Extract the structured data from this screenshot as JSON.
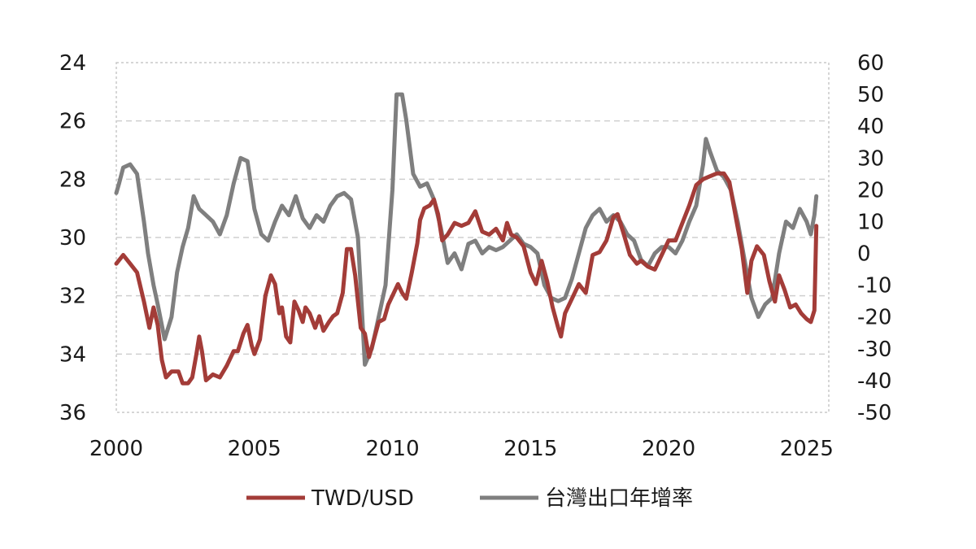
{
  "chart_data": {
    "type": "line",
    "title": "",
    "xlabel": "",
    "ylabel_left": "",
    "ylabel_right": "",
    "x_ticks": [
      "2000",
      "2005",
      "2010",
      "2015",
      "2020",
      "2025"
    ],
    "y_left_ticks": [
      "24",
      "26",
      "28",
      "30",
      "32",
      "34",
      "36"
    ],
    "y_right_ticks": [
      "60",
      "50",
      "40",
      "30",
      "20",
      "10",
      "0",
      "-10",
      "-20",
      "-30",
      "-40",
      "-50"
    ],
    "x_range": [
      2000,
      2025.8
    ],
    "y_left_range": [
      24,
      36
    ],
    "y_left_inverted": true,
    "y_right_range": [
      -50,
      60
    ],
    "grid": "horizontal dashed",
    "legend_position": "bottom",
    "series": [
      {
        "name": "TWD/USD",
        "axis": "left",
        "color": "#a33c38",
        "points": [
          [
            2000.0,
            30.9
          ],
          [
            2000.25,
            30.6
          ],
          [
            2000.5,
            30.9
          ],
          [
            2000.75,
            31.2
          ],
          [
            2001.0,
            32.2
          ],
          [
            2001.2,
            33.1
          ],
          [
            2001.35,
            32.4
          ],
          [
            2001.5,
            33.0
          ],
          [
            2001.65,
            34.2
          ],
          [
            2001.8,
            34.8
          ],
          [
            2002.0,
            34.6
          ],
          [
            2002.25,
            34.6
          ],
          [
            2002.4,
            35.0
          ],
          [
            2002.6,
            35.0
          ],
          [
            2002.75,
            34.8
          ],
          [
            2002.9,
            34.0
          ],
          [
            2003.0,
            33.4
          ],
          [
            2003.1,
            33.9
          ],
          [
            2003.25,
            34.9
          ],
          [
            2003.5,
            34.7
          ],
          [
            2003.75,
            34.8
          ],
          [
            2004.0,
            34.4
          ],
          [
            2004.25,
            33.9
          ],
          [
            2004.4,
            33.9
          ],
          [
            2004.6,
            33.3
          ],
          [
            2004.75,
            33.0
          ],
          [
            2004.9,
            33.7
          ],
          [
            2005.0,
            34.0
          ],
          [
            2005.2,
            33.5
          ],
          [
            2005.4,
            32.0
          ],
          [
            2005.6,
            31.3
          ],
          [
            2005.75,
            31.6
          ],
          [
            2005.9,
            32.6
          ],
          [
            2006.0,
            32.4
          ],
          [
            2006.15,
            33.4
          ],
          [
            2006.3,
            33.6
          ],
          [
            2006.45,
            32.2
          ],
          [
            2006.6,
            32.5
          ],
          [
            2006.75,
            32.9
          ],
          [
            2006.85,
            32.4
          ],
          [
            2007.0,
            32.6
          ],
          [
            2007.2,
            33.1
          ],
          [
            2007.35,
            32.7
          ],
          [
            2007.5,
            33.2
          ],
          [
            2007.7,
            32.9
          ],
          [
            2007.85,
            32.7
          ],
          [
            2008.0,
            32.6
          ],
          [
            2008.2,
            31.9
          ],
          [
            2008.35,
            30.4
          ],
          [
            2008.5,
            30.4
          ],
          [
            2008.65,
            31.3
          ],
          [
            2008.85,
            33.1
          ],
          [
            2009.0,
            33.3
          ],
          [
            2009.15,
            34.1
          ],
          [
            2009.3,
            33.6
          ],
          [
            2009.5,
            32.9
          ],
          [
            2009.7,
            32.8
          ],
          [
            2009.85,
            32.3
          ],
          [
            2010.0,
            32.0
          ],
          [
            2010.2,
            31.6
          ],
          [
            2010.35,
            31.9
          ],
          [
            2010.5,
            32.1
          ],
          [
            2010.7,
            31.2
          ],
          [
            2010.9,
            30.2
          ],
          [
            2011.0,
            29.4
          ],
          [
            2011.15,
            29.0
          ],
          [
            2011.35,
            28.9
          ],
          [
            2011.5,
            28.7
          ],
          [
            2011.65,
            29.2
          ],
          [
            2011.8,
            30.1
          ],
          [
            2012.0,
            29.9
          ],
          [
            2012.25,
            29.5
          ],
          [
            2012.5,
            29.6
          ],
          [
            2012.75,
            29.5
          ],
          [
            2013.0,
            29.1
          ],
          [
            2013.25,
            29.8
          ],
          [
            2013.5,
            29.9
          ],
          [
            2013.75,
            29.7
          ],
          [
            2014.0,
            30.1
          ],
          [
            2014.15,
            29.5
          ],
          [
            2014.3,
            29.9
          ],
          [
            2014.5,
            30.0
          ],
          [
            2014.75,
            30.3
          ],
          [
            2015.0,
            31.2
          ],
          [
            2015.2,
            31.6
          ],
          [
            2015.4,
            30.8
          ],
          [
            2015.6,
            31.5
          ],
          [
            2015.8,
            32.4
          ],
          [
            2016.0,
            33.1
          ],
          [
            2016.1,
            33.4
          ],
          [
            2016.25,
            32.6
          ],
          [
            2016.5,
            32.1
          ],
          [
            2016.75,
            31.6
          ],
          [
            2017.0,
            31.9
          ],
          [
            2017.25,
            30.6
          ],
          [
            2017.5,
            30.5
          ],
          [
            2017.75,
            30.1
          ],
          [
            2018.0,
            29.3
          ],
          [
            2018.15,
            29.2
          ],
          [
            2018.35,
            29.8
          ],
          [
            2018.6,
            30.6
          ],
          [
            2018.85,
            30.9
          ],
          [
            2019.0,
            30.8
          ],
          [
            2019.25,
            31.0
          ],
          [
            2019.5,
            31.1
          ],
          [
            2019.75,
            30.6
          ],
          [
            2020.0,
            30.1
          ],
          [
            2020.25,
            30.1
          ],
          [
            2020.5,
            29.5
          ],
          [
            2020.75,
            28.9
          ],
          [
            2021.0,
            28.2
          ],
          [
            2021.25,
            28.0
          ],
          [
            2021.5,
            27.9
          ],
          [
            2021.75,
            27.8
          ],
          [
            2022.0,
            27.8
          ],
          [
            2022.2,
            28.1
          ],
          [
            2022.45,
            29.4
          ],
          [
            2022.65,
            30.4
          ],
          [
            2022.85,
            31.9
          ],
          [
            2023.0,
            30.8
          ],
          [
            2023.2,
            30.3
          ],
          [
            2023.45,
            30.6
          ],
          [
            2023.65,
            31.5
          ],
          [
            2023.85,
            32.2
          ],
          [
            2024.0,
            31.3
          ],
          [
            2024.2,
            31.8
          ],
          [
            2024.4,
            32.4
          ],
          [
            2024.6,
            32.3
          ],
          [
            2024.8,
            32.6
          ],
          [
            2025.0,
            32.8
          ],
          [
            2025.15,
            32.9
          ],
          [
            2025.28,
            32.5
          ],
          [
            2025.35,
            29.6
          ]
        ]
      },
      {
        "name": "台灣出口年增率",
        "axis": "right",
        "color": "#7f7f7f",
        "points": [
          [
            2000.0,
            19
          ],
          [
            2000.1,
            22
          ],
          [
            2000.25,
            27
          ],
          [
            2000.5,
            28
          ],
          [
            2000.75,
            25
          ],
          [
            2001.0,
            10
          ],
          [
            2001.15,
            0
          ],
          [
            2001.35,
            -10
          ],
          [
            2001.5,
            -16
          ],
          [
            2001.75,
            -27
          ],
          [
            2002.0,
            -20
          ],
          [
            2002.2,
            -6
          ],
          [
            2002.4,
            2
          ],
          [
            2002.6,
            8
          ],
          [
            2002.8,
            18
          ],
          [
            2003.0,
            14
          ],
          [
            2003.25,
            12
          ],
          [
            2003.5,
            10
          ],
          [
            2003.75,
            6
          ],
          [
            2004.0,
            12
          ],
          [
            2004.25,
            22
          ],
          [
            2004.5,
            30
          ],
          [
            2004.75,
            29
          ],
          [
            2005.0,
            14
          ],
          [
            2005.25,
            6
          ],
          [
            2005.5,
            4
          ],
          [
            2005.75,
            10
          ],
          [
            2006.0,
            15
          ],
          [
            2006.25,
            12
          ],
          [
            2006.5,
            18
          ],
          [
            2006.75,
            11
          ],
          [
            2007.0,
            8
          ],
          [
            2007.25,
            12
          ],
          [
            2007.5,
            10
          ],
          [
            2007.75,
            15
          ],
          [
            2008.0,
            18
          ],
          [
            2008.25,
            19
          ],
          [
            2008.5,
            17
          ],
          [
            2008.75,
            5
          ],
          [
            2009.0,
            -35
          ],
          [
            2009.25,
            -30
          ],
          [
            2009.5,
            -20
          ],
          [
            2009.75,
            -10
          ],
          [
            2010.0,
            20
          ],
          [
            2010.15,
            50
          ],
          [
            2010.35,
            50
          ],
          [
            2010.5,
            42
          ],
          [
            2010.75,
            25
          ],
          [
            2011.0,
            21
          ],
          [
            2011.25,
            22
          ],
          [
            2011.5,
            17
          ],
          [
            2011.75,
            8
          ],
          [
            2012.0,
            -3
          ],
          [
            2012.25,
            0
          ],
          [
            2012.5,
            -5
          ],
          [
            2012.75,
            3
          ],
          [
            2013.0,
            4
          ],
          [
            2013.25,
            0
          ],
          [
            2013.5,
            2
          ],
          [
            2013.75,
            1
          ],
          [
            2014.0,
            2
          ],
          [
            2014.25,
            4
          ],
          [
            2014.5,
            6
          ],
          [
            2014.75,
            3
          ],
          [
            2015.0,
            2
          ],
          [
            2015.25,
            0
          ],
          [
            2015.5,
            -10
          ],
          [
            2015.75,
            -14
          ],
          [
            2016.0,
            -15
          ],
          [
            2016.25,
            -14
          ],
          [
            2016.5,
            -8
          ],
          [
            2016.75,
            0
          ],
          [
            2017.0,
            8
          ],
          [
            2017.25,
            12
          ],
          [
            2017.5,
            14
          ],
          [
            2017.75,
            10
          ],
          [
            2018.0,
            12
          ],
          [
            2018.25,
            10
          ],
          [
            2018.5,
            6
          ],
          [
            2018.75,
            4
          ],
          [
            2019.0,
            -2
          ],
          [
            2019.25,
            -4
          ],
          [
            2019.5,
            0
          ],
          [
            2019.75,
            2
          ],
          [
            2020.0,
            2
          ],
          [
            2020.25,
            0
          ],
          [
            2020.5,
            4
          ],
          [
            2020.75,
            10
          ],
          [
            2021.0,
            15
          ],
          [
            2021.25,
            28
          ],
          [
            2021.35,
            36
          ],
          [
            2021.5,
            32
          ],
          [
            2021.75,
            26
          ],
          [
            2022.0,
            24
          ],
          [
            2022.25,
            20
          ],
          [
            2022.5,
            10
          ],
          [
            2022.75,
            -2
          ],
          [
            2023.0,
            -14
          ],
          [
            2023.25,
            -20
          ],
          [
            2023.5,
            -16
          ],
          [
            2023.75,
            -14
          ],
          [
            2024.0,
            0
          ],
          [
            2024.25,
            10
          ],
          [
            2024.5,
            8
          ],
          [
            2024.75,
            14
          ],
          [
            2025.0,
            10
          ],
          [
            2025.15,
            6
          ],
          [
            2025.28,
            12
          ],
          [
            2025.35,
            18
          ]
        ]
      }
    ]
  }
}
